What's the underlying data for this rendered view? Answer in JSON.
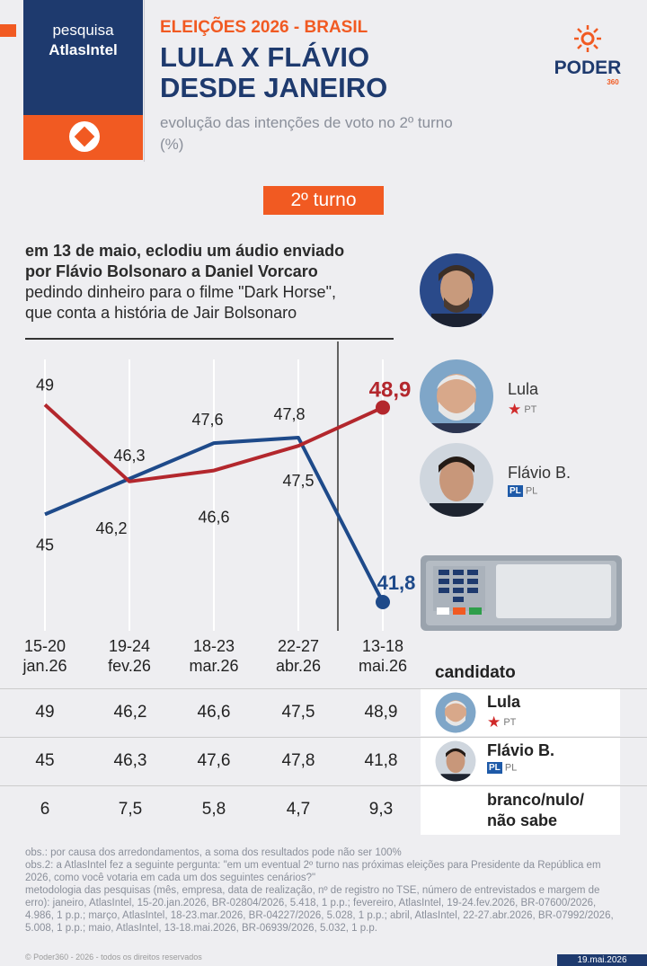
{
  "header": {
    "badge_line1": "pesquisa",
    "badge_line2": "AtlasIntel",
    "kicker": "ELEIÇÕES 2026 - BRASIL",
    "title_line1": "LULA X FLÁVIO",
    "title_line2": "DESDE JANEIRO",
    "subtitle_line1": "evolução das intenções de voto no 2º turno",
    "subtitle_line2": "(%)",
    "logo_text": "PODER",
    "logo_number": "360"
  },
  "turno_label": "2º turno",
  "annotation": {
    "bold_line1": "em 13 de maio, eclodiu um áudio enviado",
    "bold_line2": "por Flávio Bolsonaro a Daniel Vorcaro",
    "line3": "pedindo dinheiro para o filme \"Dark Horse\",",
    "line4": "que conta a história de Jair Bolsonaro"
  },
  "chart_data": {
    "type": "line",
    "categories": [
      "15-20 jan.26",
      "19-24 fev.26",
      "18-23 mar.26",
      "22-27 abr.26",
      "13-18 mai.26"
    ],
    "category_lines": [
      [
        "15-20",
        "jan.26"
      ],
      [
        "19-24",
        "fev.26"
      ],
      [
        "18-23",
        "mar.26"
      ],
      [
        "22-27",
        "abr.26"
      ],
      [
        "13-18",
        "mai.26"
      ]
    ],
    "series": [
      {
        "name": "Lula",
        "party": "PT",
        "color": "#b3272d",
        "values": [
          49,
          46.2,
          46.6,
          47.5,
          48.9
        ]
      },
      {
        "name": "Flávio B.",
        "party": "PL",
        "color": "#1e4a8a",
        "values": [
          45,
          46.3,
          47.6,
          47.8,
          41.8
        ]
      }
    ],
    "labels": {
      "lula": [
        "49",
        "46,2",
        "46,6",
        "47,5",
        "48,9"
      ],
      "flavio": [
        "45",
        "46,3",
        "47,6",
        "47,8",
        "41,8"
      ]
    },
    "ylim": [
      40,
      50
    ]
  },
  "table": {
    "header": "candidato",
    "rows": [
      {
        "values": [
          "49",
          "46,2",
          "46,6",
          "47,5",
          "48,9"
        ],
        "candidate": "Lula",
        "party": "PT"
      },
      {
        "values": [
          "45",
          "46,3",
          "47,6",
          "47,8",
          "41,8"
        ],
        "candidate": "Flávio B.",
        "party": "PL"
      },
      {
        "values": [
          "6",
          "7,5",
          "5,8",
          "4,7",
          "9,3"
        ],
        "candidate_line1": "branco/nulo/",
        "candidate_line2": "não sabe"
      }
    ]
  },
  "notes": {
    "obs1": "obs.: por causa dos arredondamentos, a soma dos resultados pode não ser 100%",
    "obs2": "obs.2: a AtlasIntel fez a seguinte pergunta: \"em um eventual 2º turno nas próximas eleições para Presidente da República em 2026, como você votaria em cada um dos seguintes cenários?\"",
    "method": "metodologia das pesquisas (mês, empresa, data de realização, nº de registro no TSE, número de entrevistados e margem de erro): janeiro, AtlasIntel, 15-20.jan.2026, BR-02804/2026, 5.418, 1 p.p.; fevereiro, AtlasIntel, 19-24.fev.2026, BR-07600/2026, 4.986, 1 p.p.; março, AtlasIntel, 18-23.mar.2026, BR-04227/2026, 5.028, 1 p.p.; abril, AtlasIntel, 22-27.abr.2026, BR-07992/2026, 5.008, 1 p.p.; maio, AtlasIntel, 13-18.mai.2026, BR-06939/2026, 5.032, 1 p.p."
  },
  "footer": {
    "copyright": "© Poder360 - 2026 - todos os direitos reservados",
    "date": "19.mai.2026"
  },
  "colors": {
    "orange": "#f15a22",
    "navy": "#1e3a6e",
    "lula_red": "#b3272d",
    "flavio_blue": "#1e4a8a"
  }
}
